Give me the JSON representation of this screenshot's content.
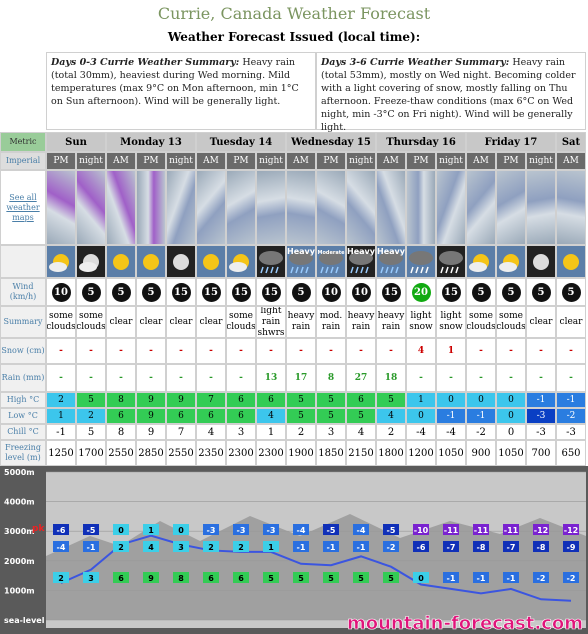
{
  "header": {
    "title": "Currie, Canada Weather Forecast",
    "issued": "Weather Forecast Issued (local time):"
  },
  "summaries": [
    {
      "heading": "Days 0-3 Currie Weather Summary:",
      "text": "Heavy rain (total 30mm), heaviest during Wed morning. Mild temperatures (max 9°C on Mon afternoon, min 1°C on Sun afternoon). Wind will be generally light."
    },
    {
      "heading": "Days 3-6 Currie Weather Summary:",
      "text": "Heavy rain (total 53mm), mostly on Wed night. Becoming colder with a light covering of snow, mostly falling on Thu afternoon. Freeze-thaw conditions (max 6°C on Wed night, min -3°C on Fri night). Wind will be generally light."
    }
  ],
  "units": {
    "metric": "Metric",
    "imperial": "Imperial"
  },
  "maps_link": "See all weather maps",
  "days": [
    {
      "name": "Sun",
      "periods": [
        "PM",
        "night"
      ]
    },
    {
      "name": "Monday 13",
      "periods": [
        "AM",
        "PM",
        "night"
      ]
    },
    {
      "name": "Tuesday 14",
      "periods": [
        "AM",
        "PM",
        "night"
      ]
    },
    {
      "name": "Wednesday 15",
      "periods": [
        "AM",
        "PM",
        "night"
      ]
    },
    {
      "name": "Thursday 16",
      "periods": [
        "AM",
        "PM",
        "night"
      ]
    },
    {
      "name": "Friday 17",
      "periods": [
        "AM",
        "PM",
        "night"
      ]
    },
    {
      "name": "Sat",
      "periods": [
        "AM"
      ]
    }
  ],
  "row_labels": {
    "wind": "Wind (km/h)",
    "summary": "Summary",
    "snow": "Snow (cm)",
    "rain": "Rain (mm)",
    "high": "High °C",
    "low": "Low °C",
    "chill": "Chill °C",
    "freezing_level": "Freezing level (m)"
  },
  "icon_labels": [
    null,
    null,
    null,
    null,
    null,
    null,
    null,
    null,
    "Heavy",
    "Moderate",
    "Heavy",
    "Heavy",
    null,
    null,
    null,
    null,
    null,
    null
  ],
  "wind": [
    10,
    5,
    5,
    5,
    15,
    15,
    15,
    15,
    5,
    10,
    10,
    15,
    20,
    15,
    5,
    5,
    5,
    5
  ],
  "summary": [
    "some clouds",
    "some clouds",
    "clear",
    "clear",
    "clear",
    "clear",
    "some clouds",
    "light rain shwrs",
    "heavy rain",
    "mod. rain",
    "heavy rain",
    "heavy rain",
    "light snow",
    "light snow",
    "some clouds",
    "some clouds",
    "clear",
    "clear"
  ],
  "snow": [
    "-",
    "-",
    "-",
    "-",
    "-",
    "-",
    "-",
    "-",
    "-",
    "-",
    "-",
    "-",
    4,
    1,
    "-",
    "-",
    "-",
    "-"
  ],
  "rain": [
    "-",
    "-",
    "-",
    "-",
    "-",
    "-",
    "-",
    13,
    17,
    8,
    27,
    18,
    "-",
    "-",
    "-",
    "-",
    "-",
    "-"
  ],
  "high": [
    2,
    5,
    8,
    9,
    9,
    7,
    6,
    6,
    5,
    5,
    6,
    5,
    1,
    0,
    0,
    0,
    -1,
    -1
  ],
  "low": [
    1,
    2,
    6,
    9,
    6,
    6,
    6,
    4,
    5,
    5,
    5,
    4,
    0,
    -1,
    -1,
    0,
    -3,
    -2
  ],
  "chill": [
    -1,
    5,
    8,
    9,
    7,
    4,
    3,
    1,
    2,
    3,
    4,
    2,
    -4,
    -4,
    -2,
    0,
    -3,
    -3
  ],
  "freezing_level": [
    1250,
    1700,
    2550,
    2850,
    2550,
    2350,
    2300,
    2300,
    1900,
    1850,
    2150,
    1800,
    1200,
    1050,
    900,
    1050,
    700,
    650
  ],
  "altitude_chart": {
    "ylim": [
      0,
      5000
    ],
    "yticks": [
      {
        "value": 5000,
        "label": "5000m"
      },
      {
        "value": 4000,
        "label": "4000m"
      },
      {
        "value": 3000,
        "label": "3000m"
      },
      {
        "value": 2000,
        "label": "2000m"
      },
      {
        "value": 1000,
        "label": "1000m"
      },
      {
        "value": 0,
        "label": "sea-level"
      }
    ],
    "peak_label": "pk",
    "rows": [
      [
        -6,
        -5,
        0,
        1,
        0,
        -3,
        -3,
        -3,
        -4,
        -5,
        -4,
        -5,
        -10,
        -11,
        -11,
        -11,
        -12,
        -12
      ],
      [
        -4,
        -1,
        2,
        4,
        3,
        2,
        2,
        1,
        -1,
        -1,
        -1,
        -2,
        -6,
        -7,
        -8,
        -7,
        -8,
        -9
      ],
      [
        2,
        3,
        6,
        9,
        8,
        6,
        6,
        5,
        5,
        5,
        5,
        5,
        0,
        -1,
        -1,
        -1,
        -2,
        -2
      ]
    ]
  },
  "logo": "mountain-forecast.com"
}
